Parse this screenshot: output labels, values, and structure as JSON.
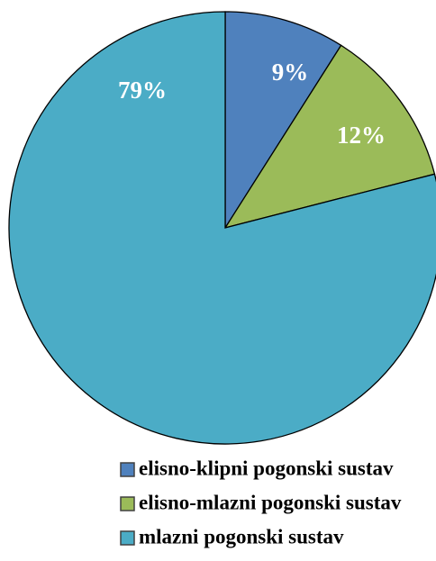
{
  "chart_data": {
    "type": "pie",
    "categories": [
      "elisno-klipni pogonski sustav",
      "elisno-mlazni pogonski sustav",
      "mlazni pogonski sustav"
    ],
    "values": [
      9,
      12,
      79
    ],
    "value_labels": [
      "9%",
      "12%",
      "79%"
    ],
    "colors": [
      "#4f81bd",
      "#9bbb59",
      "#4bacc6"
    ],
    "legend": "bottom"
  }
}
